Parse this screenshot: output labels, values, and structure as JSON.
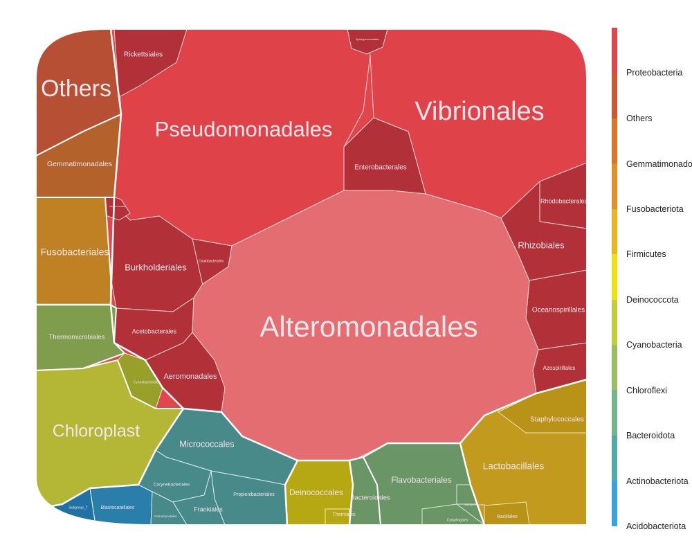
{
  "chart_data": {
    "type": "voronoi-treemap",
    "title": "",
    "cells": [
      {
        "name": "Alteromonadales",
        "group": "Proteobacteria"
      },
      {
        "name": "Pseudomonadales",
        "group": "Proteobacteria"
      },
      {
        "name": "Vibrionales",
        "group": "Proteobacteria"
      },
      {
        "name": "Enterobacterales",
        "group": "Proteobacteria"
      },
      {
        "name": "Rickettsiales",
        "group": "Proteobacteria"
      },
      {
        "name": "Sphingomonadales",
        "group": "Proteobacteria"
      },
      {
        "name": "Rhodobacterales",
        "group": "Proteobacteria"
      },
      {
        "name": "Rhizobiales",
        "group": "Proteobacteria"
      },
      {
        "name": "Oceanospirillales",
        "group": "Proteobacteria"
      },
      {
        "name": "Azospirillales",
        "group": "Proteobacteria"
      },
      {
        "name": "Burkholderiales",
        "group": "Proteobacteria"
      },
      {
        "name": "Caulobacterales",
        "group": "Proteobacteria"
      },
      {
        "name": "Acetobacterales",
        "group": "Proteobacteria"
      },
      {
        "name": "Aeromonadales",
        "group": "Proteobacteria"
      },
      {
        "name": "Xanthomonadales",
        "group": "Proteobacteria"
      },
      {
        "name": "Others",
        "group": "Others"
      },
      {
        "name": "Gemmatimonadales",
        "group": "Gemmatimonadota"
      },
      {
        "name": "Fusobacteriales",
        "group": "Fusobacteriota"
      },
      {
        "name": "Thermomicrobiales",
        "group": "Chloroflexi"
      },
      {
        "name": "Cyanobacteriales",
        "group": "Cyanobacteria"
      },
      {
        "name": "Chloroplast",
        "group": "Cyanobacteria"
      },
      {
        "name": "Subgroup_7",
        "group": "Acidobacteriota"
      },
      {
        "name": "Blastocatellales",
        "group": "Acidobacteriota"
      },
      {
        "name": "Micrococcales",
        "group": "Actinobacteriota"
      },
      {
        "name": "Corynebacteriales",
        "group": "Actinobacteriota"
      },
      {
        "name": "Propionibacteriales",
        "group": "Actinobacteriota"
      },
      {
        "name": "Frankiales",
        "group": "Actinobacteriota"
      },
      {
        "name": "Actinomycetales",
        "group": "Actinobacteriota"
      },
      {
        "name": "Deinococcales",
        "group": "Deinococcota"
      },
      {
        "name": "Thermales",
        "group": "Deinococcota"
      },
      {
        "name": "Bacteroidales",
        "group": "Bacteroidota"
      },
      {
        "name": "Flavobacteriales",
        "group": "Bacteroidota"
      },
      {
        "name": "Cytophagales",
        "group": "Bacteroidota"
      },
      {
        "name": "Sphingobacteriales",
        "group": "Bacteroidota"
      },
      {
        "name": "Lactobacillales",
        "group": "Firmicutes"
      },
      {
        "name": "Staphylococcales",
        "group": "Firmicutes"
      },
      {
        "name": "Bacillales",
        "group": "Firmicutes"
      }
    ],
    "legend": {
      "items": [
        {
          "label": "Proteobacteria",
          "color": "#e0474c"
        },
        {
          "label": "Others",
          "color": "#c95a32"
        },
        {
          "label": "Gemmatimonadota",
          "color": "#d9762b"
        },
        {
          "label": "Fusobacteriota",
          "color": "#e2902a"
        },
        {
          "label": "Firmicutes",
          "color": "#e9b524"
        },
        {
          "label": "Deinococcota",
          "color": "#ebe215"
        },
        {
          "label": "Cyanobacteria",
          "color": "#c4cc3d"
        },
        {
          "label": "Chloroflexi",
          "color": "#9cbd62"
        },
        {
          "label": "Bacteroidota",
          "color": "#76b48f"
        },
        {
          "label": "Actinobacteriota",
          "color": "#52a9a8"
        },
        {
          "label": "Acidobacteriota",
          "color": "#3ba3da"
        }
      ]
    }
  }
}
